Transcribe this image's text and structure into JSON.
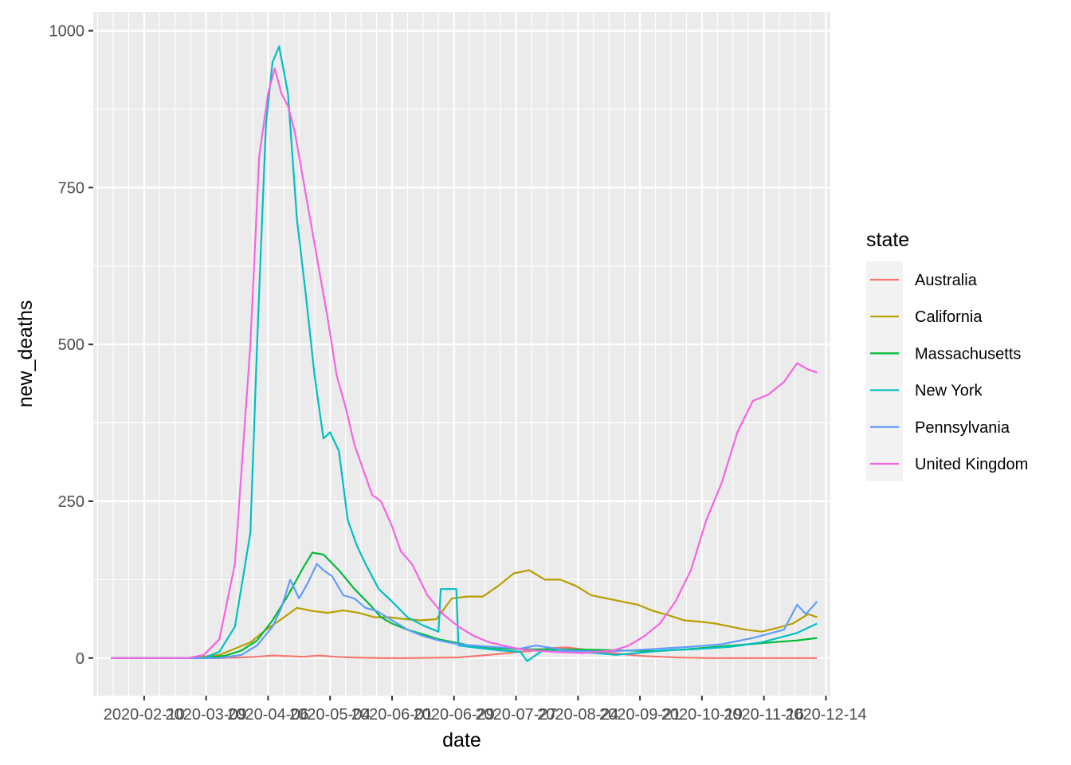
{
  "chart_data": {
    "type": "line",
    "title": "",
    "xlabel": "date",
    "ylabel": "new_deaths",
    "x_axis_type": "date",
    "xlim": [
      "2020-01-18",
      "2020-12-16"
    ],
    "ylim": [
      -60,
      1030
    ],
    "x_ticks": [
      "2020-02-10",
      "2020-03-09",
      "2020-04-06",
      "2020-05-04",
      "2020-06-01",
      "2020-06-29",
      "2020-07-27",
      "2020-08-24",
      "2020-09-21",
      "2020-10-19",
      "2020-11-16",
      "2020-12-14"
    ],
    "x_tick_labels": [
      "2020-02-10",
      "2020-03-09",
      "2020-04-06",
      "2020-05-04",
      "2020-06-01",
      "2020-06-29",
      "2020-07-27",
      "2020-08-24",
      "2020-09-21",
      "2020-10-19",
      "2020-11-16",
      "2020-12-14"
    ],
    "y_ticks": [
      0,
      250,
      500,
      750,
      1000
    ],
    "y_tick_labels": [
      "0",
      "250",
      "500",
      "750",
      "1000"
    ],
    "grid": true,
    "panel_background": "#ebebeb",
    "grid_color": "#ffffff",
    "legend": {
      "title": "state",
      "position": "right"
    },
    "series": [
      {
        "name": "Australia",
        "color": "#F8766D",
        "x": [
          "2020-01-26",
          "2020-03-01",
          "2020-03-15",
          "2020-03-25",
          "2020-04-01",
          "2020-04-08",
          "2020-04-15",
          "2020-04-22",
          "2020-04-29",
          "2020-05-06",
          "2020-05-13",
          "2020-05-27",
          "2020-06-10",
          "2020-07-01",
          "2020-07-15",
          "2020-07-29",
          "2020-08-05",
          "2020-08-12",
          "2020-08-19",
          "2020-08-26",
          "2020-09-02",
          "2020-09-09",
          "2020-09-16",
          "2020-09-23",
          "2020-09-30",
          "2020-10-07",
          "2020-10-21",
          "2020-11-04",
          "2020-11-18",
          "2020-12-10"
        ],
        "y": [
          0,
          0,
          0,
          1,
          2,
          4,
          3,
          2,
          4,
          2,
          1,
          0,
          0,
          1,
          5,
          10,
          12,
          16,
          17,
          14,
          10,
          8,
          5,
          3,
          2,
          1,
          0,
          0,
          0,
          0
        ]
      },
      {
        "name": "California",
        "color": "#B79F00",
        "x": [
          "2020-01-26",
          "2020-03-01",
          "2020-03-15",
          "2020-03-22",
          "2020-03-29",
          "2020-04-05",
          "2020-04-12",
          "2020-04-19",
          "2020-04-26",
          "2020-05-03",
          "2020-05-10",
          "2020-05-17",
          "2020-05-24",
          "2020-05-31",
          "2020-06-07",
          "2020-06-14",
          "2020-06-21",
          "2020-06-28",
          "2020-07-05",
          "2020-07-12",
          "2020-07-19",
          "2020-07-26",
          "2020-08-02",
          "2020-08-09",
          "2020-08-16",
          "2020-08-23",
          "2020-08-30",
          "2020-09-06",
          "2020-09-13",
          "2020-09-20",
          "2020-09-27",
          "2020-10-04",
          "2020-10-11",
          "2020-10-18",
          "2020-10-25",
          "2020-11-01",
          "2020-11-08",
          "2020-11-15",
          "2020-11-22",
          "2020-11-29",
          "2020-12-06",
          "2020-12-10"
        ],
        "y": [
          0,
          0,
          5,
          15,
          25,
          45,
          62,
          80,
          75,
          72,
          76,
          72,
          65,
          65,
          62,
          60,
          62,
          95,
          98,
          98,
          115,
          135,
          140,
          125,
          125,
          115,
          100,
          95,
          90,
          85,
          75,
          68,
          60,
          58,
          55,
          50,
          45,
          42,
          48,
          55,
          70,
          65
        ]
      },
      {
        "name": "Massachusetts",
        "color": "#00BA38",
        "x": [
          "2020-01-26",
          "2020-03-08",
          "2020-03-18",
          "2020-03-25",
          "2020-04-01",
          "2020-04-08",
          "2020-04-15",
          "2020-04-22",
          "2020-04-26",
          "2020-05-01",
          "2020-05-08",
          "2020-05-15",
          "2020-05-22",
          "2020-05-27",
          "2020-06-01",
          "2020-06-08",
          "2020-06-15",
          "2020-06-22",
          "2020-06-29",
          "2020-07-06",
          "2020-07-20",
          "2020-08-03",
          "2020-08-17",
          "2020-08-31",
          "2020-09-14",
          "2020-09-28",
          "2020-10-12",
          "2020-10-26",
          "2020-11-09",
          "2020-11-23",
          "2020-12-01",
          "2020-12-10"
        ],
        "y": [
          0,
          0,
          4,
          12,
          28,
          60,
          100,
          145,
          168,
          165,
          140,
          110,
          85,
          65,
          55,
          45,
          38,
          30,
          25,
          20,
          15,
          14,
          14,
          13,
          12,
          11,
          14,
          18,
          22,
          26,
          28,
          32
        ]
      },
      {
        "name": "New York",
        "color": "#00BFC4",
        "x": [
          "2020-01-26",
          "2020-03-08",
          "2020-03-15",
          "2020-03-22",
          "2020-03-29",
          "2020-04-01",
          "2020-04-05",
          "2020-04-08",
          "2020-04-11",
          "2020-04-15",
          "2020-04-19",
          "2020-04-23",
          "2020-04-27",
          "2020-05-01",
          "2020-05-04",
          "2020-05-08",
          "2020-05-12",
          "2020-05-16",
          "2020-05-20",
          "2020-05-26",
          "2020-06-01",
          "2020-06-08",
          "2020-06-15",
          "2020-06-22",
          "2020-06-23",
          "2020-06-30",
          "2020-07-01",
          "2020-07-10",
          "2020-07-20",
          "2020-07-29",
          "2020-08-01",
          "2020-08-08",
          "2020-08-20",
          "2020-09-01",
          "2020-09-10",
          "2020-09-20",
          "2020-10-01",
          "2020-10-15",
          "2020-11-01",
          "2020-11-15",
          "2020-12-01",
          "2020-12-10"
        ],
        "y": [
          0,
          0,
          10,
          50,
          200,
          500,
          850,
          950,
          975,
          900,
          700,
          580,
          450,
          350,
          360,
          330,
          220,
          180,
          150,
          110,
          90,
          65,
          52,
          42,
          110,
          110,
          20,
          16,
          12,
          10,
          -5,
          12,
          10,
          8,
          5,
          8,
          12,
          14,
          18,
          25,
          40,
          55
        ]
      },
      {
        "name": "Pennsylvania",
        "color": "#619CFF",
        "x": [
          "2020-01-26",
          "2020-03-15",
          "2020-03-25",
          "2020-04-01",
          "2020-04-08",
          "2020-04-12",
          "2020-04-16",
          "2020-04-20",
          "2020-04-24",
          "2020-04-28",
          "2020-05-01",
          "2020-05-05",
          "2020-05-10",
          "2020-05-15",
          "2020-05-20",
          "2020-05-25",
          "2020-06-01",
          "2020-06-08",
          "2020-06-15",
          "2020-06-22",
          "2020-07-01",
          "2020-07-15",
          "2020-07-29",
          "2020-08-05",
          "2020-08-19",
          "2020-09-02",
          "2020-09-16",
          "2020-09-30",
          "2020-10-14",
          "2020-10-28",
          "2020-11-11",
          "2020-11-25",
          "2020-12-01",
          "2020-12-05",
          "2020-12-10"
        ],
        "y": [
          0,
          0,
          5,
          20,
          50,
          80,
          125,
          95,
          120,
          150,
          140,
          130,
          100,
          95,
          80,
          75,
          60,
          45,
          35,
          28,
          22,
          18,
          15,
          20,
          12,
          10,
          12,
          15,
          18,
          22,
          32,
          45,
          85,
          70,
          90
        ]
      },
      {
        "name": "United Kingdom",
        "color": "#F564E3",
        "x": [
          "2020-01-26",
          "2020-03-01",
          "2020-03-08",
          "2020-03-15",
          "2020-03-22",
          "2020-03-29",
          "2020-04-02",
          "2020-04-06",
          "2020-04-09",
          "2020-04-12",
          "2020-04-15",
          "2020-04-18",
          "2020-04-21",
          "2020-04-25",
          "2020-04-29",
          "2020-05-03",
          "2020-05-07",
          "2020-05-11",
          "2020-05-15",
          "2020-05-19",
          "2020-05-23",
          "2020-05-27",
          "2020-06-01",
          "2020-06-05",
          "2020-06-10",
          "2020-06-17",
          "2020-06-24",
          "2020-07-01",
          "2020-07-08",
          "2020-07-15",
          "2020-07-29",
          "2020-08-12",
          "2020-08-26",
          "2020-09-09",
          "2020-09-16",
          "2020-09-23",
          "2020-09-30",
          "2020-10-07",
          "2020-10-14",
          "2020-10-21",
          "2020-10-28",
          "2020-11-04",
          "2020-11-11",
          "2020-11-18",
          "2020-11-25",
          "2020-12-01",
          "2020-12-06",
          "2020-12-10"
        ],
        "y": [
          0,
          0,
          5,
          30,
          150,
          500,
          800,
          900,
          940,
          900,
          880,
          840,
          780,
          700,
          620,
          540,
          450,
          400,
          340,
          300,
          260,
          250,
          210,
          170,
          150,
          100,
          70,
          50,
          35,
          25,
          14,
          10,
          8,
          12,
          20,
          35,
          55,
          90,
          140,
          220,
          280,
          360,
          410,
          420,
          440,
          470,
          460,
          455
        ]
      }
    ]
  }
}
